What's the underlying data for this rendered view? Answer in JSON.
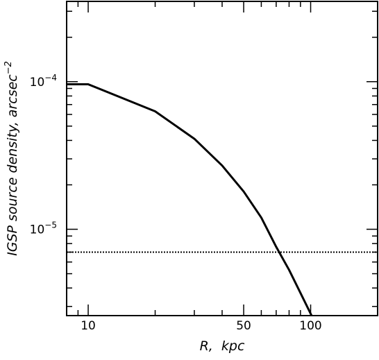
{
  "chart_data": {
    "type": "line",
    "xlabel": "R,  kpc",
    "ylabel": "IGSP source density, arcsec",
    "ylabel_superscript": "−2",
    "x_scale": "log",
    "y_scale": "log",
    "xlim": [
      8,
      200
    ],
    "ylim": [
      2.6e-06,
      0.00035
    ],
    "x_ticks": [
      {
        "value": 10,
        "label": "10"
      },
      {
        "value": 50,
        "label": "50"
      },
      {
        "value": 100,
        "label": "100"
      }
    ],
    "y_ticks": [
      {
        "value": 0.0001,
        "base": "10",
        "exp": "−4"
      },
      {
        "value": 1e-05,
        "base": "10",
        "exp": "−5"
      }
    ],
    "series": [
      {
        "style": "solid",
        "color": "#000000",
        "points": [
          [
            8,
            9.6e-05
          ],
          [
            10,
            9.6e-05
          ],
          [
            20,
            6.3e-05
          ],
          [
            30,
            4.1e-05
          ],
          [
            40,
            2.7e-05
          ],
          [
            50,
            1.8e-05
          ],
          [
            60,
            1.2e-05
          ],
          [
            70,
            7.6e-06
          ],
          [
            80,
            5.3e-06
          ],
          [
            90,
            3.7e-06
          ],
          [
            101,
            2.6e-06
          ]
        ]
      },
      {
        "style": "dotted",
        "color": "#000000",
        "points": [
          [
            8,
            7e-06
          ],
          [
            200,
            7e-06
          ]
        ]
      }
    ],
    "grid": false,
    "legend": "none"
  }
}
